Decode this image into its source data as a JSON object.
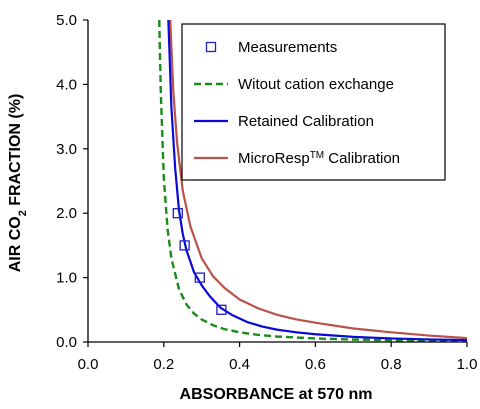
{
  "chart_data": {
    "type": "line",
    "xlabel": "ABSORBANCE at 570 nm",
    "ylabel": "AIR CO2 FRACTION (%)",
    "ylabel_parts": {
      "pre": "AIR CO",
      "sub": "2",
      "post": " FRACTION (%)"
    },
    "xlim": [
      0.0,
      1.0
    ],
    "ylim": [
      0.0,
      5.0
    ],
    "xticks": [
      "0.0",
      "0.2",
      "0.4",
      "0.6",
      "0.8",
      "1.0"
    ],
    "yticks": [
      "0.0",
      "1.0",
      "2.0",
      "3.0",
      "4.0",
      "5.0"
    ],
    "grid": false,
    "legend_position": "top-right",
    "series": [
      {
        "name": "Measurements",
        "kind": "markers",
        "marker": "open-square",
        "color": "#1f1fbf",
        "x": [
          0.237,
          0.255,
          0.295,
          0.352
        ],
        "y": [
          2.0,
          1.5,
          1.0,
          0.5
        ]
      },
      {
        "name": "Witout cation exchange",
        "kind": "dashed-line",
        "color": "#1a8c1a",
        "x": [
          0.188,
          0.192,
          0.2,
          0.21,
          0.22,
          0.24,
          0.26,
          0.28,
          0.3,
          0.33,
          0.36,
          0.4,
          0.45,
          0.5,
          0.6,
          0.7,
          0.8,
          0.9,
          1.0
        ],
        "y": [
          5.0,
          3.9,
          2.55,
          1.75,
          1.3,
          0.82,
          0.58,
          0.44,
          0.35,
          0.26,
          0.2,
          0.15,
          0.11,
          0.085,
          0.055,
          0.038,
          0.028,
          0.02,
          0.015
        ]
      },
      {
        "name": "Retained Calibration",
        "kind": "solid-line",
        "color": "#0a0ad4",
        "x": [
          0.212,
          0.22,
          0.23,
          0.24,
          0.25,
          0.26,
          0.28,
          0.3,
          0.32,
          0.35,
          0.38,
          0.42,
          0.46,
          0.5,
          0.55,
          0.6,
          0.7,
          0.8,
          0.9,
          1.0
        ],
        "y": [
          5.0,
          3.65,
          2.7,
          2.05,
          1.68,
          1.42,
          1.08,
          0.88,
          0.72,
          0.53,
          0.42,
          0.31,
          0.24,
          0.19,
          0.15,
          0.12,
          0.08,
          0.055,
          0.04,
          0.03
        ]
      },
      {
        "name": "MicroResp",
        "name_superscript": "TM",
        "name_suffix": " Calibration",
        "kind": "solid-line",
        "color": "#b8524a",
        "x": [
          0.217,
          0.225,
          0.235,
          0.25,
          0.27,
          0.3,
          0.33,
          0.36,
          0.4,
          0.45,
          0.5,
          0.55,
          0.6,
          0.7,
          0.8,
          0.9,
          1.0
        ],
        "y": [
          5.0,
          3.9,
          3.1,
          2.35,
          1.8,
          1.3,
          1.02,
          0.84,
          0.66,
          0.52,
          0.42,
          0.35,
          0.3,
          0.21,
          0.15,
          0.1,
          0.06
        ]
      }
    ]
  }
}
